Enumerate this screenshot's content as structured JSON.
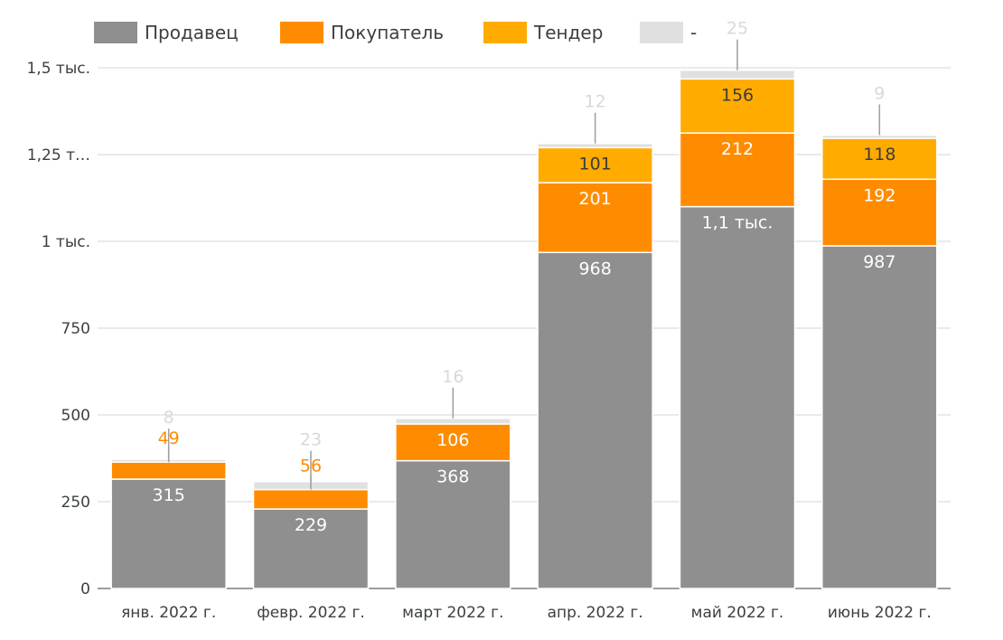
{
  "chart_data": {
    "type": "bar",
    "stacked": true,
    "categories": [
      "янв. 2022 г.",
      "февр. 2022 г.",
      "март 2022 г.",
      "апр. 2022 г.",
      "май 2022 г.",
      "июнь 2022 г."
    ],
    "series": [
      {
        "name": "Продавец",
        "color": "#8f8f8f",
        "values": [
          315,
          229,
          368,
          968,
          1100,
          987
        ],
        "labels": [
          "315",
          "229",
          "368",
          "968",
          "1,1 тыс.",
          "987"
        ],
        "label_color": "#ffffff"
      },
      {
        "name": "Покупатель",
        "color": "#ff8c00",
        "values": [
          49,
          56,
          106,
          201,
          212,
          192
        ],
        "labels": [
          "49",
          "56",
          "106",
          "201",
          "212",
          "192"
        ],
        "label_color": "#ffffff"
      },
      {
        "name": "Тендер",
        "color": "#ffab00",
        "values": [
          0,
          0,
          0,
          101,
          156,
          118
        ],
        "labels": [
          "",
          "",
          "",
          "101",
          "156",
          "118"
        ],
        "label_color": "#3c3c3c"
      },
      {
        "name": "-",
        "color": "#e0e0e0",
        "values": [
          8,
          23,
          16,
          12,
          25,
          9
        ],
        "labels": [
          "8",
          "23",
          "16",
          "12",
          "25",
          "9"
        ],
        "label_color": "#d9d9d9"
      }
    ],
    "y_ticks": [
      {
        "value": 0,
        "label": "0"
      },
      {
        "value": 250,
        "label": "250"
      },
      {
        "value": 500,
        "label": "500"
      },
      {
        "value": 750,
        "label": "750"
      },
      {
        "value": 1000,
        "label": "1 тыс."
      },
      {
        "value": 1250,
        "label": "1,25 т…"
      },
      {
        "value": 1500,
        "label": "1,5 тыс."
      }
    ],
    "ylim": [
      0,
      1500
    ],
    "grid": true,
    "legend_position": "top-left",
    "title": "",
    "xlabel": "",
    "ylabel": ""
  }
}
